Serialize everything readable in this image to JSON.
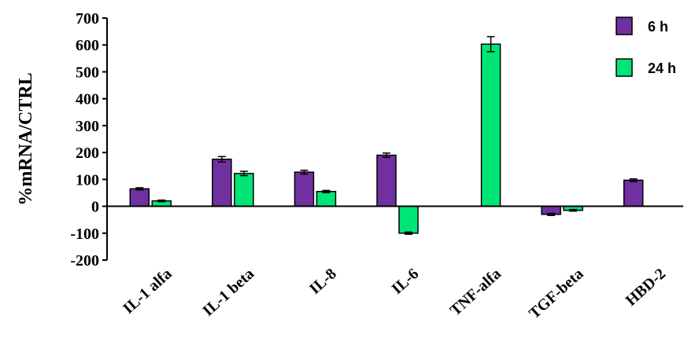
{
  "chart_data": {
    "type": "bar",
    "title": "",
    "xlabel": "",
    "ylabel": "%mRNA/CTRL",
    "ylim": [
      -200,
      700
    ],
    "yticks": [
      700,
      600,
      500,
      400,
      300,
      200,
      100,
      0,
      -100,
      -200
    ],
    "categories": [
      "IL-1 alfa",
      "IL-1 beta",
      "IL-8",
      "IL-6",
      "TNF-alfa",
      "TGF-beta",
      "HBD-2"
    ],
    "series": [
      {
        "name": "6 h",
        "color": "#7030a0",
        "values": [
          65,
          175,
          127,
          190,
          null,
          -30,
          97
        ],
        "errors": [
          4,
          10,
          7,
          8,
          null,
          4,
          5
        ]
      },
      {
        "name": "24 h",
        "color": "#00e676",
        "values": [
          20,
          122,
          55,
          -100,
          603,
          -15,
          null
        ],
        "errors": [
          3,
          8,
          4,
          4,
          28,
          3,
          null
        ]
      }
    ],
    "legend_position": "top-right",
    "grid": false
  }
}
